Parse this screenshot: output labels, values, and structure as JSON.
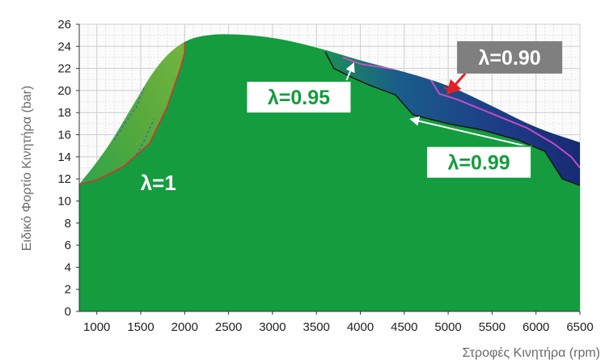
{
  "chart_data": {
    "type": "area",
    "title": "",
    "xlabel": "Στροφές Κινητήρα (rpm)",
    "ylabel": "Ειδικό Φορτίο Κινητήρα (bar)",
    "xlim": [
      800,
      6500
    ],
    "ylim": [
      0,
      26
    ],
    "x_ticks": [
      1000,
      1500,
      2000,
      2500,
      3000,
      3500,
      4000,
      4500,
      5000,
      5500,
      6000,
      6500
    ],
    "y_ticks": [
      0,
      2,
      4,
      6,
      8,
      10,
      12,
      14,
      16,
      18,
      20,
      22,
      24,
      26
    ],
    "grid": true,
    "envelope": {
      "x": [
        800,
        1100,
        1400,
        1700,
        2000,
        2300,
        2600,
        2900,
        3200,
        3600,
        4000,
        4500,
        5000,
        5500,
        6000,
        6500
      ],
      "y": [
        11.5,
        14.5,
        18.5,
        22.5,
        24.6,
        25.1,
        25.1,
        24.9,
        24.5,
        23.7,
        22.7,
        21.7,
        20.5,
        18.6,
        16.6,
        15.3
      ]
    },
    "regions": [
      {
        "label": "λ=1",
        "color": "#149c3e"
      },
      {
        "label": "λ=0.99",
        "color": "#0e6ea0"
      },
      {
        "label": "λ=0.95",
        "color": "#21428a"
      },
      {
        "label": "λ=0.90",
        "color": "#1b2b74"
      }
    ],
    "contours": [
      {
        "label": "λ=0.99",
        "x": [
          3600,
          3700,
          3900,
          4100,
          4400,
          4600,
          5000,
          5400,
          5800,
          6100,
          6300,
          6500
        ],
        "y": [
          23.5,
          22.0,
          21.2,
          20.5,
          19.6,
          17.8,
          17.0,
          16.4,
          15.5,
          14.5,
          12.0,
          11.4
        ]
      },
      {
        "label": "λ=0.95",
        "x": [
          3800,
          4000,
          4500,
          4800,
          4900,
          5100,
          5500,
          5900,
          6200,
          6400,
          6500
        ],
        "y": [
          23.0,
          22.4,
          21.8,
          21.0,
          19.7,
          19.2,
          17.9,
          16.6,
          15.2,
          14.0,
          13.0
        ]
      },
      {
        "label": "λ=0.90",
        "x": [
          4950,
          5050,
          5200,
          5300
        ],
        "y": [
          20.3,
          19.9,
          20.2,
          20.6
        ]
      },
      {
        "label": "",
        "x": [
          800,
          1000,
          1300,
          1600,
          1800,
          1950,
          2000,
          2000
        ],
        "y": [
          11.5,
          11.9,
          13.1,
          15.2,
          18.5,
          22.0,
          23.4,
          24.6
        ]
      }
    ],
    "annotations": [
      {
        "text": "λ=1",
        "x": 1700,
        "y": 11.0,
        "style": "plain"
      },
      {
        "text": "λ=0.95",
        "x": 3300,
        "y": 19.4,
        "style": "box",
        "arrow_to": [
          3920,
          22.4
        ]
      },
      {
        "text": "λ=0.99",
        "x": 5350,
        "y": 13.5,
        "style": "box",
        "arrow_to": [
          4580,
          17.4
        ]
      },
      {
        "text": "λ=0.90",
        "x": 5700,
        "y": 23.0,
        "style": "dark-box",
        "arrow_to": [
          5000,
          19.8
        ]
      }
    ]
  }
}
